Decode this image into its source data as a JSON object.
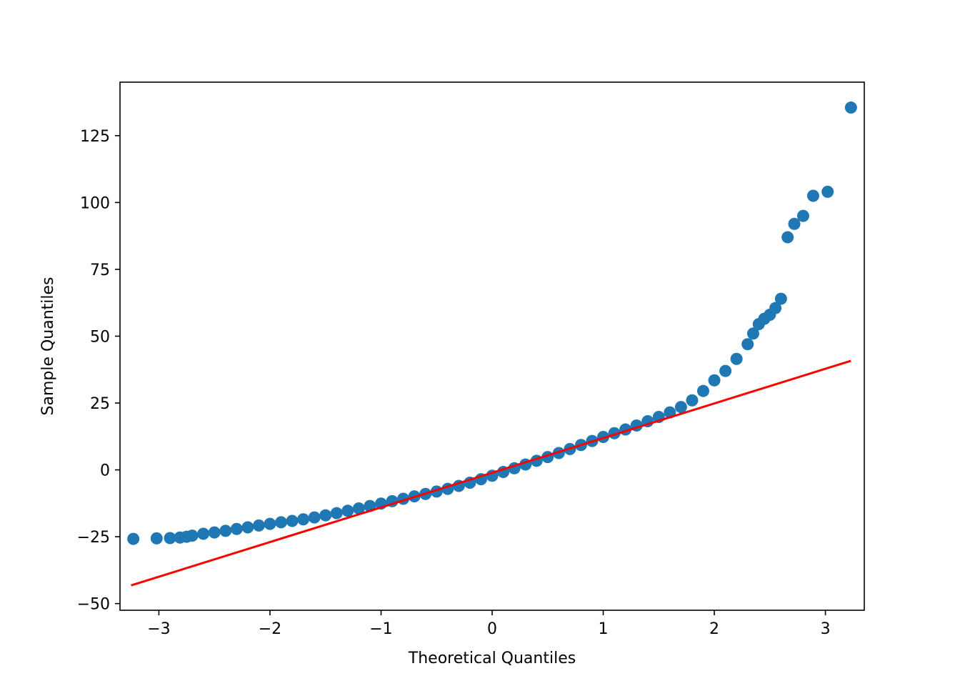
{
  "chart_data": {
    "type": "scatter",
    "title": "",
    "xlabel": "Theoretical Quantiles",
    "ylabel": "Sample Quantiles",
    "xlim": [
      -3.35,
      3.35
    ],
    "ylim": [
      -52.5,
      145
    ],
    "xticks": [
      -3,
      -2,
      -1,
      0,
      1,
      2,
      3
    ],
    "xtick_labels": [
      "−3",
      "−2",
      "−1",
      "0",
      "1",
      "2",
      "3"
    ],
    "yticks": [
      -50,
      -25,
      0,
      25,
      50,
      75,
      100,
      125
    ],
    "ytick_labels": [
      "−50",
      "−25",
      "0",
      "25",
      "50",
      "75",
      "100",
      "125"
    ],
    "grid": false,
    "series": [
      {
        "kind": "points",
        "color": "#1f77b4",
        "points": [
          [
            -3.23,
            -25.8
          ],
          [
            -3.02,
            -25.6
          ],
          [
            -2.9,
            -25.5
          ],
          [
            -2.81,
            -25.3
          ],
          [
            -2.75,
            -25.0
          ],
          [
            -2.7,
            -24.6
          ],
          [
            -2.6,
            -23.9
          ],
          [
            -2.5,
            -23.4
          ],
          [
            -2.4,
            -22.8
          ],
          [
            -2.3,
            -22.1
          ],
          [
            -2.2,
            -21.5
          ],
          [
            -2.1,
            -20.8
          ],
          [
            -2.0,
            -20.2
          ],
          [
            -1.9,
            -19.6
          ],
          [
            -1.8,
            -19.1
          ],
          [
            -1.7,
            -18.5
          ],
          [
            -1.6,
            -17.8
          ],
          [
            -1.5,
            -17.0
          ],
          [
            -1.4,
            -16.2
          ],
          [
            -1.3,
            -15.3
          ],
          [
            -1.2,
            -14.4
          ],
          [
            -1.1,
            -13.5
          ],
          [
            -1.0,
            -12.6
          ],
          [
            -0.9,
            -11.7
          ],
          [
            -0.8,
            -10.8
          ],
          [
            -0.7,
            -9.9
          ],
          [
            -0.6,
            -9.0
          ],
          [
            -0.5,
            -8.1
          ],
          [
            -0.4,
            -7.1
          ],
          [
            -0.3,
            -6.0
          ],
          [
            -0.2,
            -4.8
          ],
          [
            -0.1,
            -3.5
          ],
          [
            0.0,
            -2.2
          ],
          [
            0.1,
            -0.8
          ],
          [
            0.2,
            0.6
          ],
          [
            0.3,
            2.0
          ],
          [
            0.4,
            3.4
          ],
          [
            0.5,
            4.8
          ],
          [
            0.6,
            6.3
          ],
          [
            0.7,
            7.8
          ],
          [
            0.8,
            9.3
          ],
          [
            0.9,
            10.8
          ],
          [
            1.0,
            12.3
          ],
          [
            1.1,
            13.7
          ],
          [
            1.2,
            15.1
          ],
          [
            1.3,
            16.6
          ],
          [
            1.4,
            18.2
          ],
          [
            1.5,
            19.8
          ],
          [
            1.6,
            21.5
          ],
          [
            1.7,
            23.5
          ],
          [
            1.8,
            26.0
          ],
          [
            1.9,
            29.5
          ],
          [
            2.0,
            33.5
          ],
          [
            2.1,
            37.0
          ],
          [
            2.2,
            41.5
          ],
          [
            2.3,
            47.0
          ],
          [
            2.35,
            51.0
          ],
          [
            2.4,
            54.5
          ],
          [
            2.45,
            56.5
          ],
          [
            2.5,
            58.0
          ],
          [
            2.55,
            60.5
          ],
          [
            2.6,
            64.0
          ],
          [
            2.66,
            87.0
          ],
          [
            2.72,
            92.0
          ],
          [
            2.8,
            95.0
          ],
          [
            2.89,
            102.5
          ],
          [
            3.02,
            104.0
          ],
          [
            3.23,
            135.5
          ]
        ]
      },
      {
        "kind": "line",
        "color": "#ff0000",
        "x": [
          -3.25,
          3.23
        ],
        "y": [
          -43.2,
          40.8
        ]
      }
    ]
  }
}
